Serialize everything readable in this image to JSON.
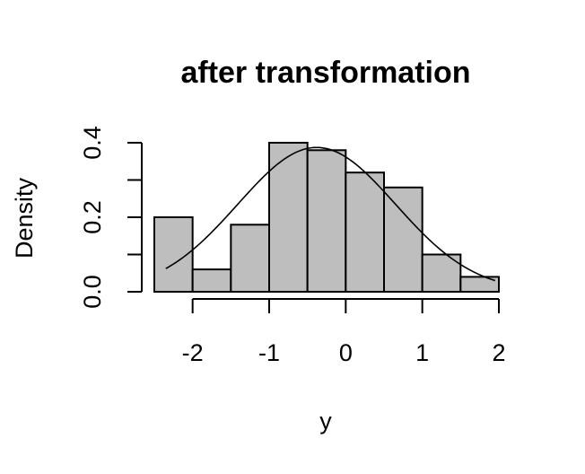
{
  "chart_data": {
    "type": "bar",
    "subtype": "histogram",
    "title": "after transformation",
    "xlabel": "y",
    "ylabel": "Density",
    "bar_color": "#bebebe",
    "bar_border_color": "#000000",
    "curve_color": "#000000",
    "bins": [
      {
        "x0": -2.5,
        "x1": -2.0,
        "density": 0.2
      },
      {
        "x0": -2.0,
        "x1": -1.5,
        "density": 0.06
      },
      {
        "x0": -1.5,
        "x1": -1.0,
        "density": 0.18
      },
      {
        "x0": -1.0,
        "x1": -0.5,
        "density": 0.4
      },
      {
        "x0": -0.5,
        "x1": 0.0,
        "density": 0.38
      },
      {
        "x0": 0.0,
        "x1": 0.5,
        "density": 0.32
      },
      {
        "x0": 0.5,
        "x1": 1.0,
        "density": 0.28
      },
      {
        "x0": 1.0,
        "x1": 1.5,
        "density": 0.1
      },
      {
        "x0": 1.5,
        "x1": 2.0,
        "density": 0.04
      }
    ],
    "density_curve": {
      "type": "normal",
      "mean": -0.38,
      "sd": 1.03,
      "x_range": [
        -2.35,
        1.95
      ]
    },
    "xlim": [
      -2.5,
      2.0
    ],
    "ylim": [
      0.0,
      0.4
    ],
    "x_ticks": [
      -2,
      -1,
      0,
      1,
      2
    ],
    "x_tick_labels": [
      "-2",
      "-1",
      "0",
      "1",
      "2"
    ],
    "y_ticks": [
      0.0,
      0.1,
      0.2,
      0.3,
      0.4
    ],
    "y_tick_labels": [
      "0.0",
      "",
      "0.2",
      "",
      "0.4"
    ],
    "grid": false,
    "legend": "none"
  }
}
